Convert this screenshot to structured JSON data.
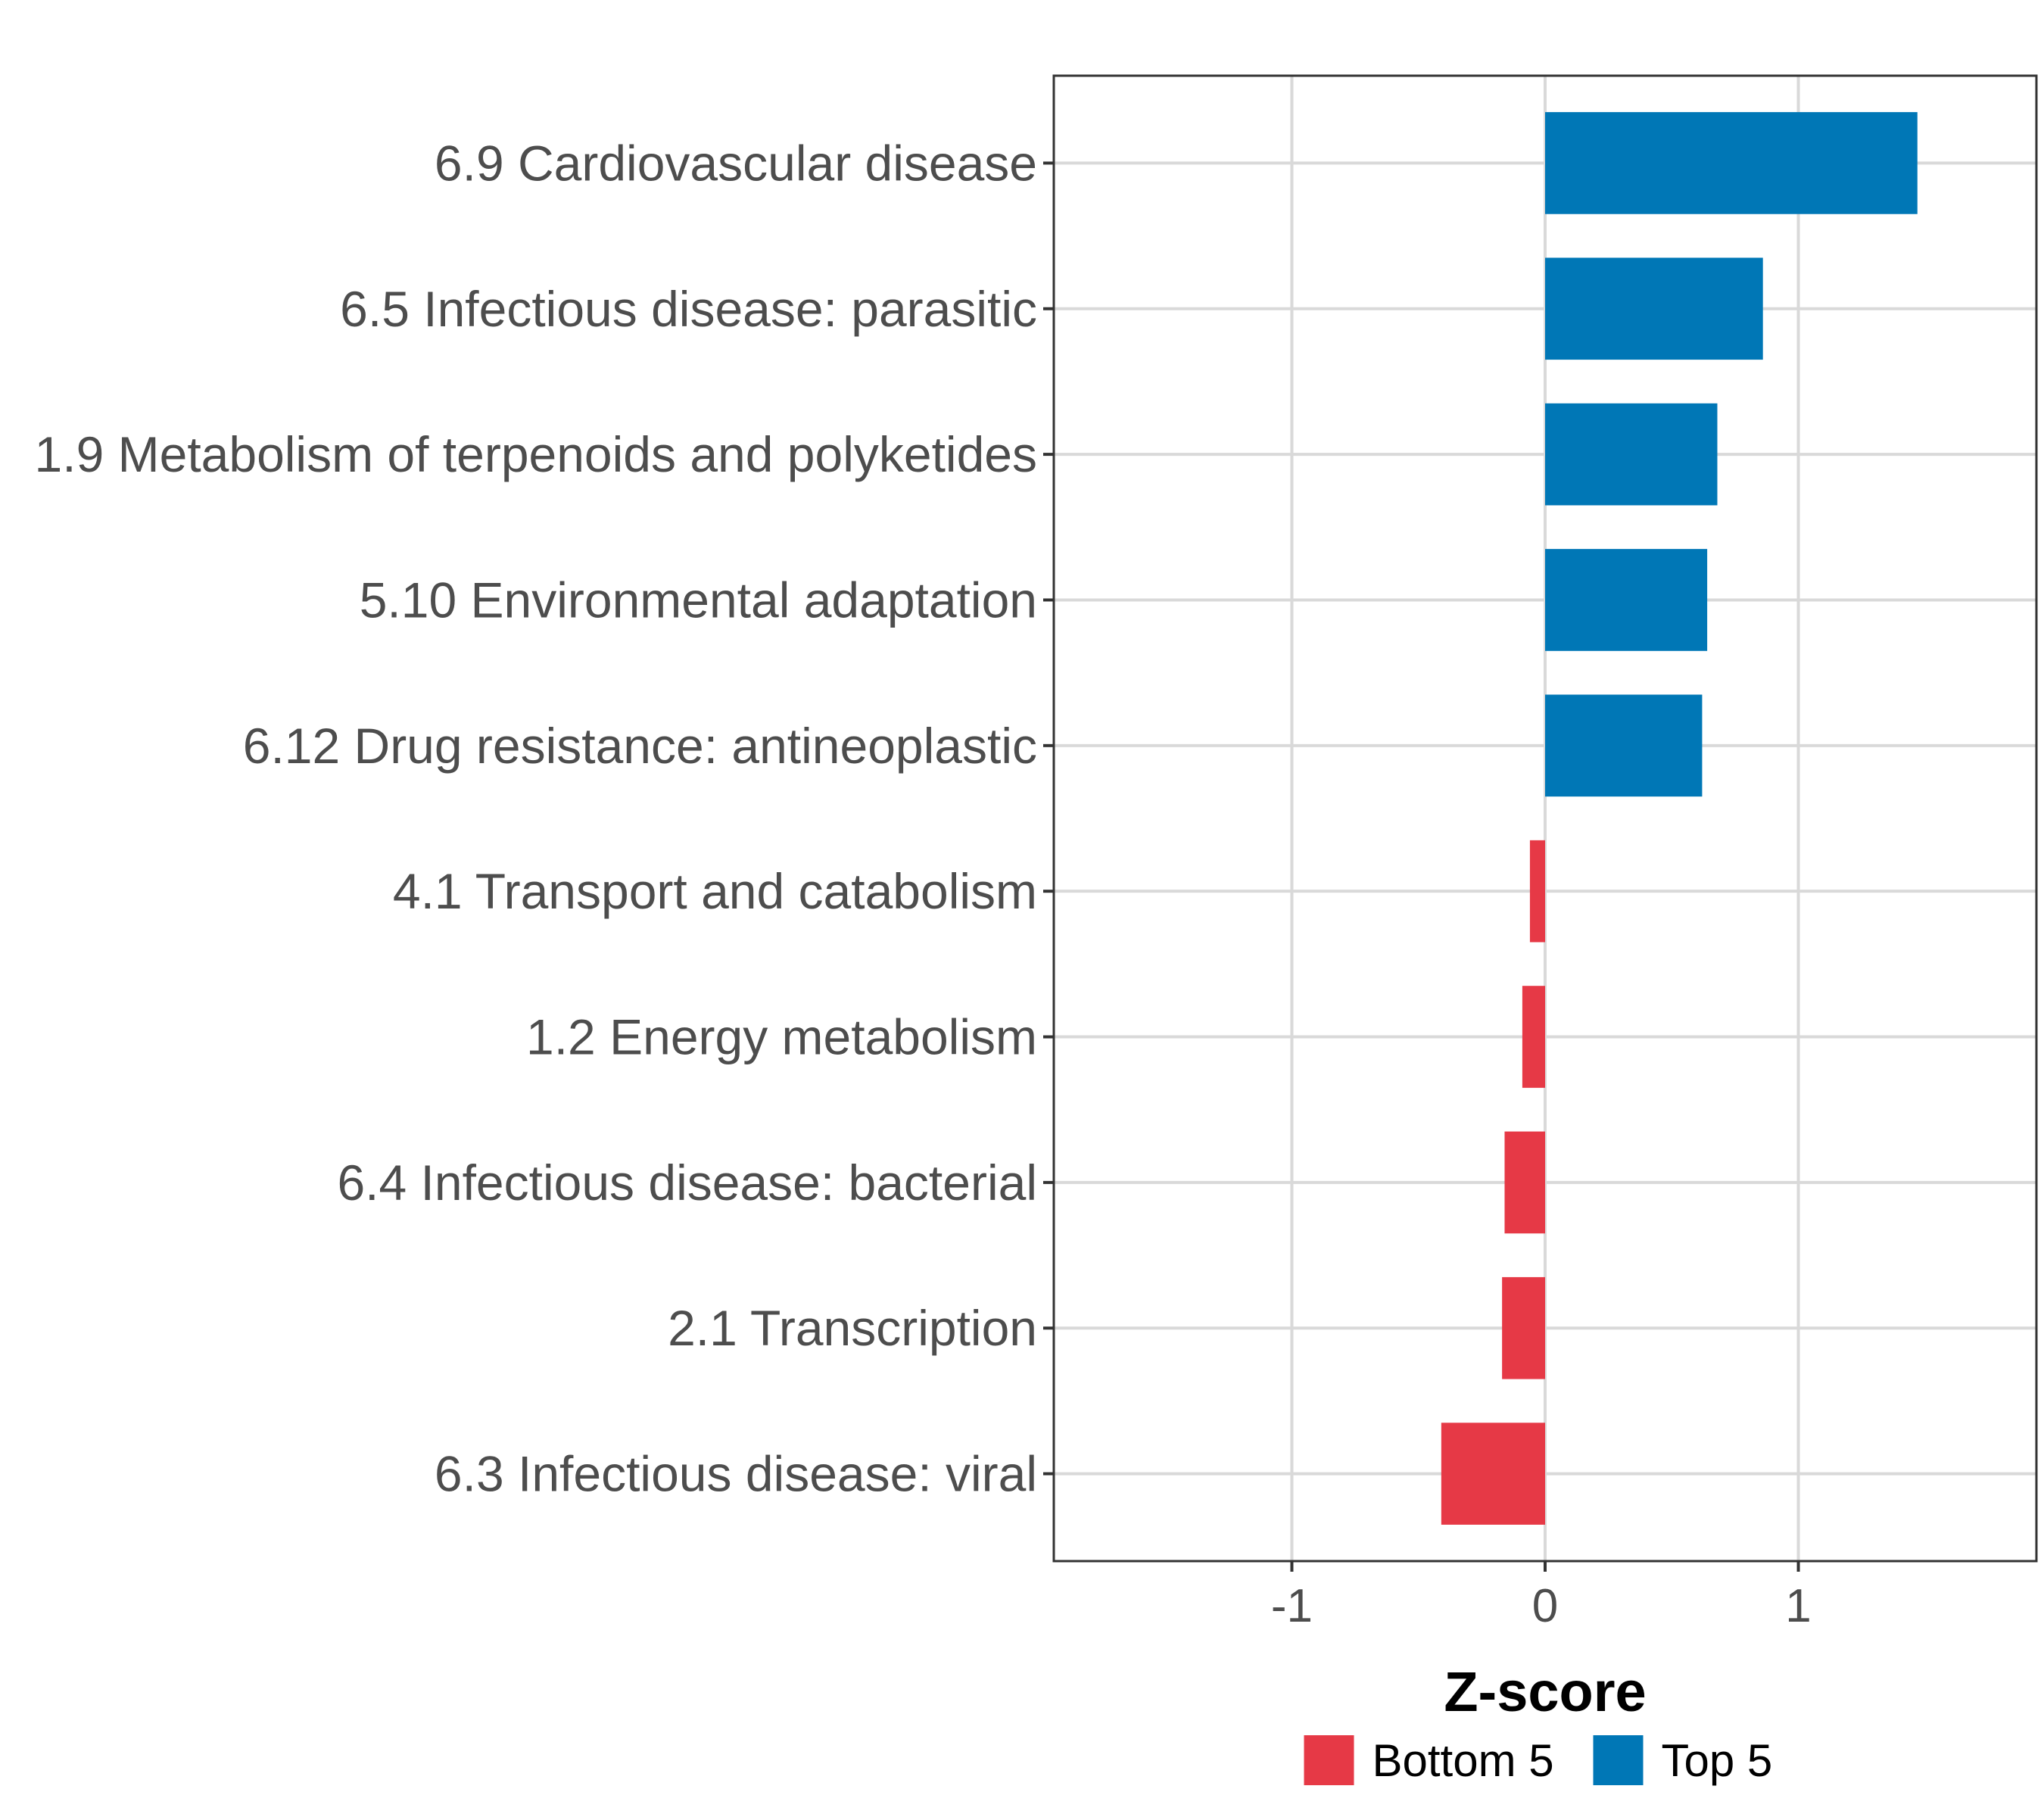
{
  "chart_data": {
    "type": "bar",
    "orientation": "horizontal",
    "categories": [
      "6.9 Cardiovascular disease",
      "6.5 Infectious disease: parasitic",
      "1.9 Metabolism of terpenoids and polyketides",
      "5.10 Environmental adaptation",
      "6.12 Drug resistance: antineoplastic",
      "4.1 Transport and catabolism",
      "1.2 Energy metabolism",
      "6.4 Infectious disease: bacterial",
      "2.1 Transcription",
      "6.3 Infectious disease: viral"
    ],
    "values": [
      1.47,
      0.86,
      0.68,
      0.64,
      0.62,
      -0.06,
      -0.09,
      -0.16,
      -0.17,
      -0.41
    ],
    "groups": [
      "Top 5",
      "Top 5",
      "Top 5",
      "Top 5",
      "Top 5",
      "Bottom 5",
      "Bottom 5",
      "Bottom 5",
      "Bottom 5",
      "Bottom 5"
    ],
    "xlabel": "Z-score",
    "ylabel": "",
    "xlim": [
      -1.94,
      1.94
    ],
    "xticks": [
      -1,
      0,
      1
    ],
    "xtick_labels": [
      "-1",
      "0",
      "1"
    ],
    "grid": true,
    "legend": {
      "position": "bottom",
      "entries": [
        {
          "label": "Bottom 5",
          "color": "#E63946"
        },
        {
          "label": "Top 5",
          "color": "#0077B6"
        }
      ]
    },
    "colors": {
      "Top 5": "#0077B6",
      "Bottom 5": "#E63946"
    }
  }
}
